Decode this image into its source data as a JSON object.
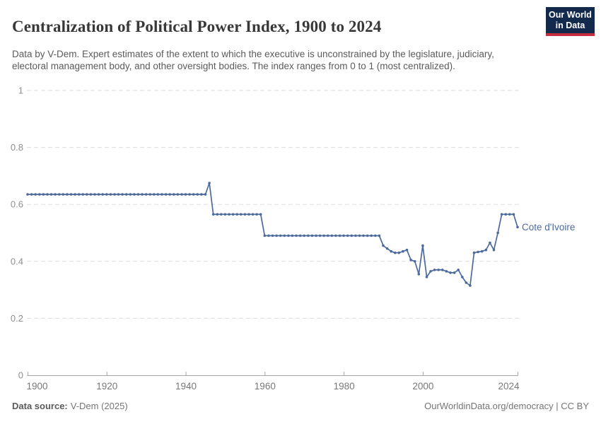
{
  "header": {
    "title": "Centralization of Political Power Index, 1900 to 2024",
    "subtitle": "Data by V-Dem. Expert estimates of the extent to which the executive is unconstrained by the legislature, judiciary, electoral management body, and other oversight bodies. The index ranges from 0 to 1 (most centralized)."
  },
  "logo": {
    "line1": "Our World",
    "line2": "in Data",
    "bg_color": "#142a4d",
    "accent_color": "#c42f3f"
  },
  "chart_data": {
    "type": "line",
    "title": "Centralization of Political Power Index, 1900 to 2024",
    "xlabel": "",
    "ylabel": "",
    "ylim": [
      0,
      1
    ],
    "xlim": [
      1900,
      2024
    ],
    "yticks": [
      0,
      0.2,
      0.4,
      0.6,
      0.8,
      1
    ],
    "xticks": [
      1900,
      1920,
      1940,
      1960,
      1980,
      2000,
      2024
    ],
    "grid": "horizontal-dashed",
    "legend_position": "end-of-line-label",
    "colors": {
      "line": "#4c6a9c",
      "gridline": "#dedede",
      "axis": "#a5a5a5",
      "y_tick_label": "#8f8f8f",
      "x_tick_label": "#787878"
    },
    "series": [
      {
        "name": "Cote d'Ivoire",
        "color": "#4c6a9c",
        "years": [
          1900,
          1901,
          1902,
          1903,
          1904,
          1905,
          1906,
          1907,
          1908,
          1909,
          1910,
          1911,
          1912,
          1913,
          1914,
          1915,
          1916,
          1917,
          1918,
          1919,
          1920,
          1921,
          1922,
          1923,
          1924,
          1925,
          1926,
          1927,
          1928,
          1929,
          1930,
          1931,
          1932,
          1933,
          1934,
          1935,
          1936,
          1937,
          1938,
          1939,
          1940,
          1941,
          1942,
          1943,
          1944,
          1945,
          1946,
          1947,
          1948,
          1949,
          1950,
          1951,
          1952,
          1953,
          1954,
          1955,
          1956,
          1957,
          1958,
          1959,
          1960,
          1961,
          1962,
          1963,
          1964,
          1965,
          1966,
          1967,
          1968,
          1969,
          1970,
          1971,
          1972,
          1973,
          1974,
          1975,
          1976,
          1977,
          1978,
          1979,
          1980,
          1981,
          1982,
          1983,
          1984,
          1985,
          1986,
          1987,
          1988,
          1989,
          1990,
          1991,
          1992,
          1993,
          1994,
          1995,
          1996,
          1997,
          1998,
          1999,
          2000,
          2001,
          2002,
          2003,
          2004,
          2005,
          2006,
          2007,
          2008,
          2009,
          2010,
          2011,
          2012,
          2013,
          2014,
          2015,
          2016,
          2017,
          2018,
          2019,
          2020,
          2021,
          2022,
          2023,
          2024
        ],
        "values": [
          0.635,
          0.635,
          0.635,
          0.635,
          0.635,
          0.635,
          0.635,
          0.635,
          0.635,
          0.635,
          0.635,
          0.635,
          0.635,
          0.635,
          0.635,
          0.635,
          0.635,
          0.635,
          0.635,
          0.635,
          0.635,
          0.635,
          0.635,
          0.635,
          0.635,
          0.635,
          0.635,
          0.635,
          0.635,
          0.635,
          0.635,
          0.635,
          0.635,
          0.635,
          0.635,
          0.635,
          0.635,
          0.635,
          0.635,
          0.635,
          0.635,
          0.635,
          0.635,
          0.635,
          0.635,
          0.635,
          0.675,
          0.565,
          0.565,
          0.565,
          0.565,
          0.565,
          0.565,
          0.565,
          0.565,
          0.565,
          0.565,
          0.565,
          0.565,
          0.565,
          0.49,
          0.49,
          0.49,
          0.49,
          0.49,
          0.49,
          0.49,
          0.49,
          0.49,
          0.49,
          0.49,
          0.49,
          0.49,
          0.49,
          0.49,
          0.49,
          0.49,
          0.49,
          0.49,
          0.49,
          0.49,
          0.49,
          0.49,
          0.49,
          0.49,
          0.49,
          0.49,
          0.49,
          0.49,
          0.49,
          0.455,
          0.445,
          0.435,
          0.43,
          0.43,
          0.435,
          0.44,
          0.405,
          0.4,
          0.355,
          0.455,
          0.345,
          0.365,
          0.37,
          0.37,
          0.37,
          0.365,
          0.36,
          0.36,
          0.37,
          0.345,
          0.325,
          0.315,
          0.43,
          0.433,
          0.435,
          0.44,
          0.465,
          0.44,
          0.5,
          0.565,
          0.565,
          0.565,
          0.565,
          0.52
        ]
      }
    ]
  },
  "footer": {
    "source_label": "Data source:",
    "source_value": "V-Dem (2025)",
    "citation": "OurWorldinData.org/democracy | CC BY"
  }
}
